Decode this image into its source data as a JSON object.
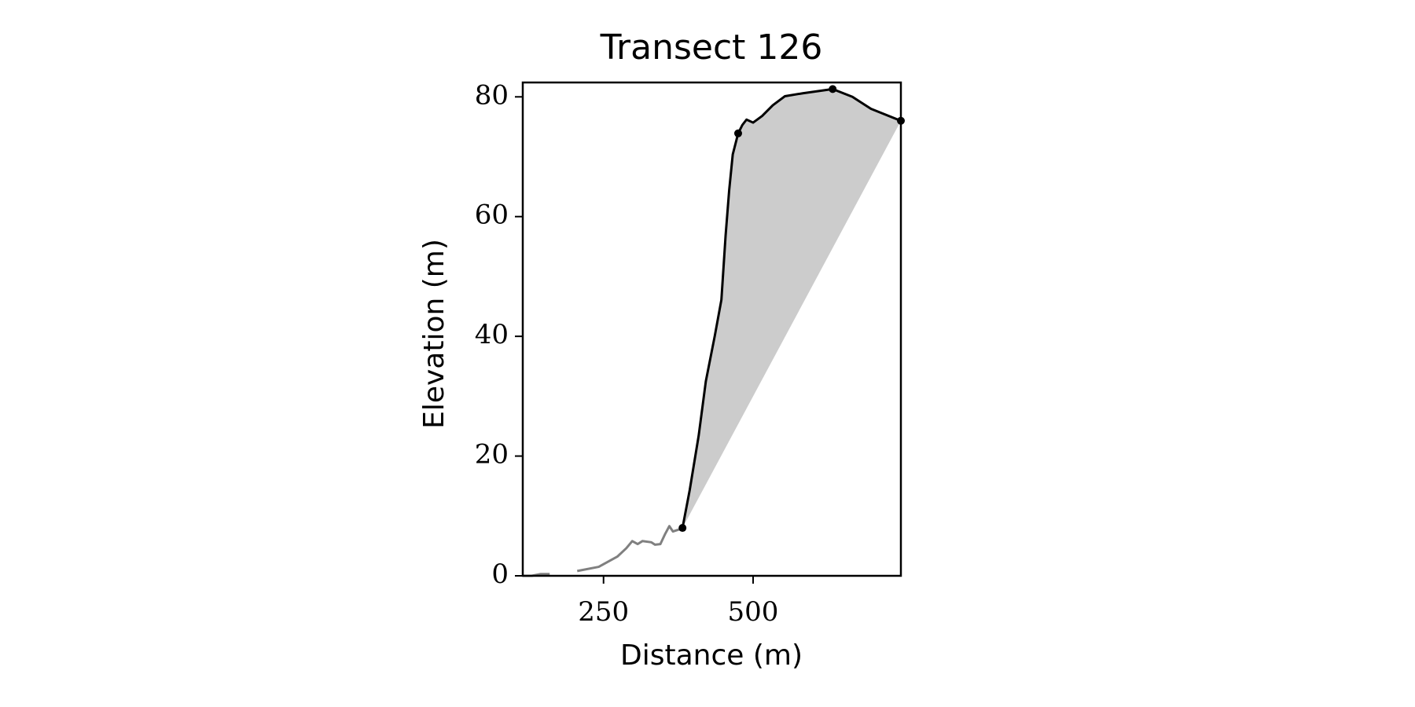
{
  "chart_data": {
    "type": "line",
    "title": "Transect 126",
    "x_label": "Distance (m)",
    "y_label": "Elevation (m)",
    "xlim": [
      115,
      747
    ],
    "ylim": [
      0,
      82.4
    ],
    "xticks": [
      250,
      500
    ],
    "yticks": [
      0,
      20,
      40,
      60,
      80
    ],
    "fill_color": "#cccccc",
    "series": [
      {
        "color": "#808080",
        "x": [
          115,
          130,
          145,
          160,
          183,
          206,
          242,
          273,
          288,
          298,
          307,
          315,
          330,
          336,
          345,
          353,
          360,
          366,
          375,
          382
        ],
        "values": [
          0,
          0,
          0.3,
          0.3,
          null,
          0.8,
          1.5,
          3.2,
          4.6,
          5.8,
          5.3,
          5.8,
          5.6,
          5.2,
          5.3,
          7.0,
          8.3,
          7.4,
          7.7,
          7.9
        ]
      },
      {
        "color": "#000000",
        "x": [
          382,
          394,
          409,
          421,
          436,
          447,
          454,
          460,
          466,
          475,
          482,
          489,
          500,
          515,
          533,
          553,
          583,
          633,
          666,
          697,
          747
        ],
        "values": [
          8,
          14.3,
          23.4,
          32.5,
          40.1,
          46.1,
          56.8,
          64.4,
          70.4,
          73.9,
          75.3,
          76.2,
          75.7,
          76.8,
          78.6,
          80.1,
          80.6,
          81.3,
          80,
          78,
          76
        ]
      },
      {
        "type": "scatter",
        "color": "#000000",
        "x": [
          382,
          475,
          633,
          747
        ],
        "values": [
          8,
          73.9,
          81.3,
          76
        ]
      }
    ]
  }
}
